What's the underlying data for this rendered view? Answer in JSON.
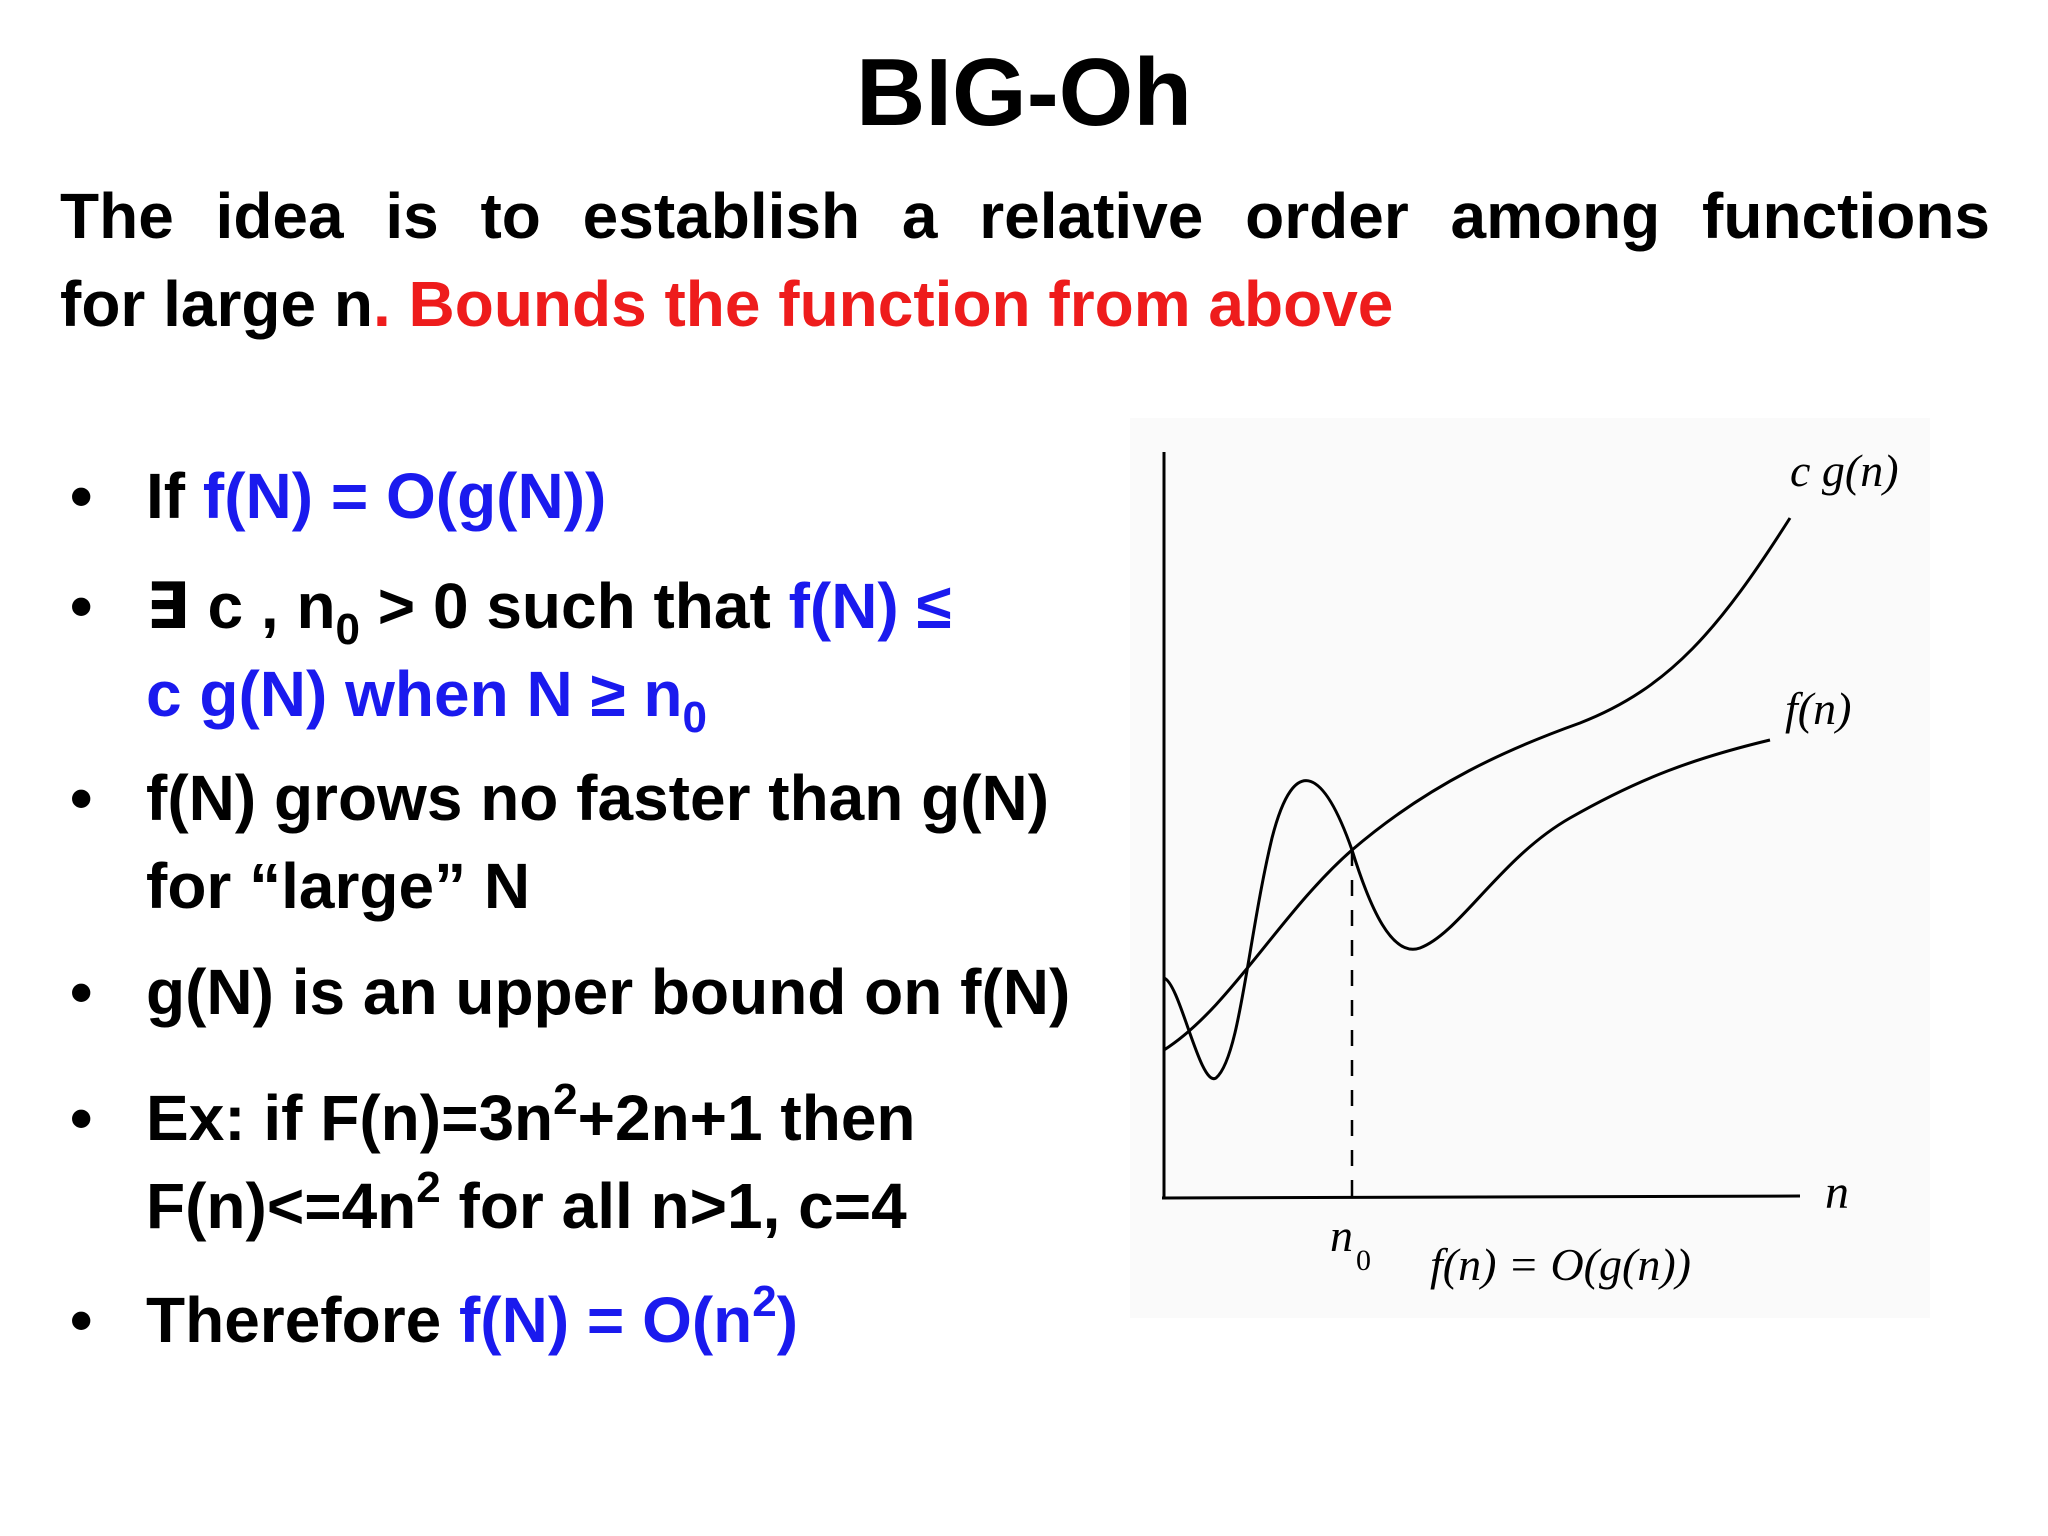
{
  "slide": {
    "title": "BIG-Oh",
    "intro": {
      "line1": "The idea is to establish a relative order among functions",
      "line2_start": "for large n",
      "line2_highlight": ". Bounds the function from above"
    },
    "bullets": {
      "b1_prefix": "If ",
      "b1_formula": "f(N) = O(g(N))",
      "b2_part1": "∃ c , n",
      "b2_sub1": "0",
      "b2_part2": " > 0 such that  ",
      "b2_formula_a": "f(N) ≤",
      "b2_formula_b": "c g(N) when N ≥ n",
      "b2_sub2": "0",
      "b3": "f(N) grows no faster than g(N) for “large” N",
      "b4": "g(N) is an upper bound on f(N)",
      "b5_part1": "Ex: if F(n)=3n",
      "b5_sup1": "2",
      "b5_part2": "+2n+1 then",
      "b5_part3": "F(n)<=4n",
      "b5_sup2": "2",
      "b5_part4": "  for all n>1, c=4",
      "b6_prefix": "Therefore ",
      "b6_formula_a": "f(N) = O(n",
      "b6_sup": "2",
      "b6_formula_b": ")"
    }
  },
  "diagram": {
    "curve_labels": {
      "cg": "c g(n)",
      "f": "f(n)"
    },
    "axis_labels": {
      "x": "n",
      "n0_base": "n",
      "n0_sub": "0"
    },
    "caption": "f(n) = O(g(n))"
  },
  "colors": {
    "highlight_red": "#ee1c1c",
    "highlight_blue": "#1a1aee"
  }
}
